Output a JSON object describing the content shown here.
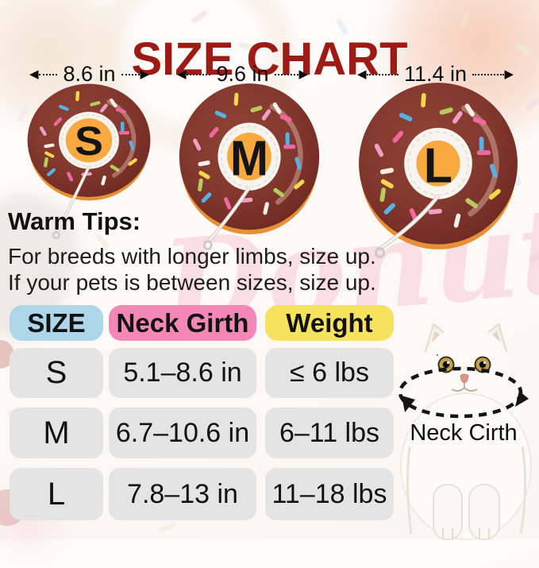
{
  "title": {
    "text": "SIZE CHART",
    "color": "#9d1b15"
  },
  "donuts": [
    {
      "letter": "S",
      "width_label": "8.6 in"
    },
    {
      "letter": "M",
      "width_label": "9.6 in"
    },
    {
      "letter": "L",
      "width_label": "11.4 in"
    }
  ],
  "warm_tips": {
    "heading": "Warm Tips:",
    "lines": [
      "For breeds with longer limbs, size up.",
      "If your pets is between sizes, size up."
    ]
  },
  "size_table": {
    "headers": [
      {
        "label": "SIZE",
        "bg": "#aed6ea"
      },
      {
        "label": "Neck Girth",
        "bg": "#f487b6"
      },
      {
        "label": "Weight",
        "bg": "#f6e25c"
      }
    ],
    "cell_bg": "#e4e4e4",
    "rows": [
      {
        "size": "S",
        "neck_girth": "5.1–8.6 in",
        "weight": "≤ 6 lbs"
      },
      {
        "size": "M",
        "neck_girth": "6.7–10.6 in",
        "weight": "6–11 lbs"
      },
      {
        "size": "L",
        "neck_girth": "7.8–13 in",
        "weight": "11–18 lbs"
      }
    ]
  },
  "cat_label": "Neck Cirth",
  "background": {
    "watermark": "Donuts"
  },
  "palette": {
    "donut_body": "#84392e",
    "donut_body_light": "#8f4234",
    "donut_body_dark": "#6d2a22",
    "donut_rim": "#e78f35",
    "donut_center": "#f8a93f",
    "donut_inner_ring": "#f8f5f0",
    "sprinkles": [
      "#f2679f",
      "#58b1e4",
      "#f9d64b",
      "#b6cd5d",
      "#f6efe7",
      "#ef9fc4"
    ]
  }
}
